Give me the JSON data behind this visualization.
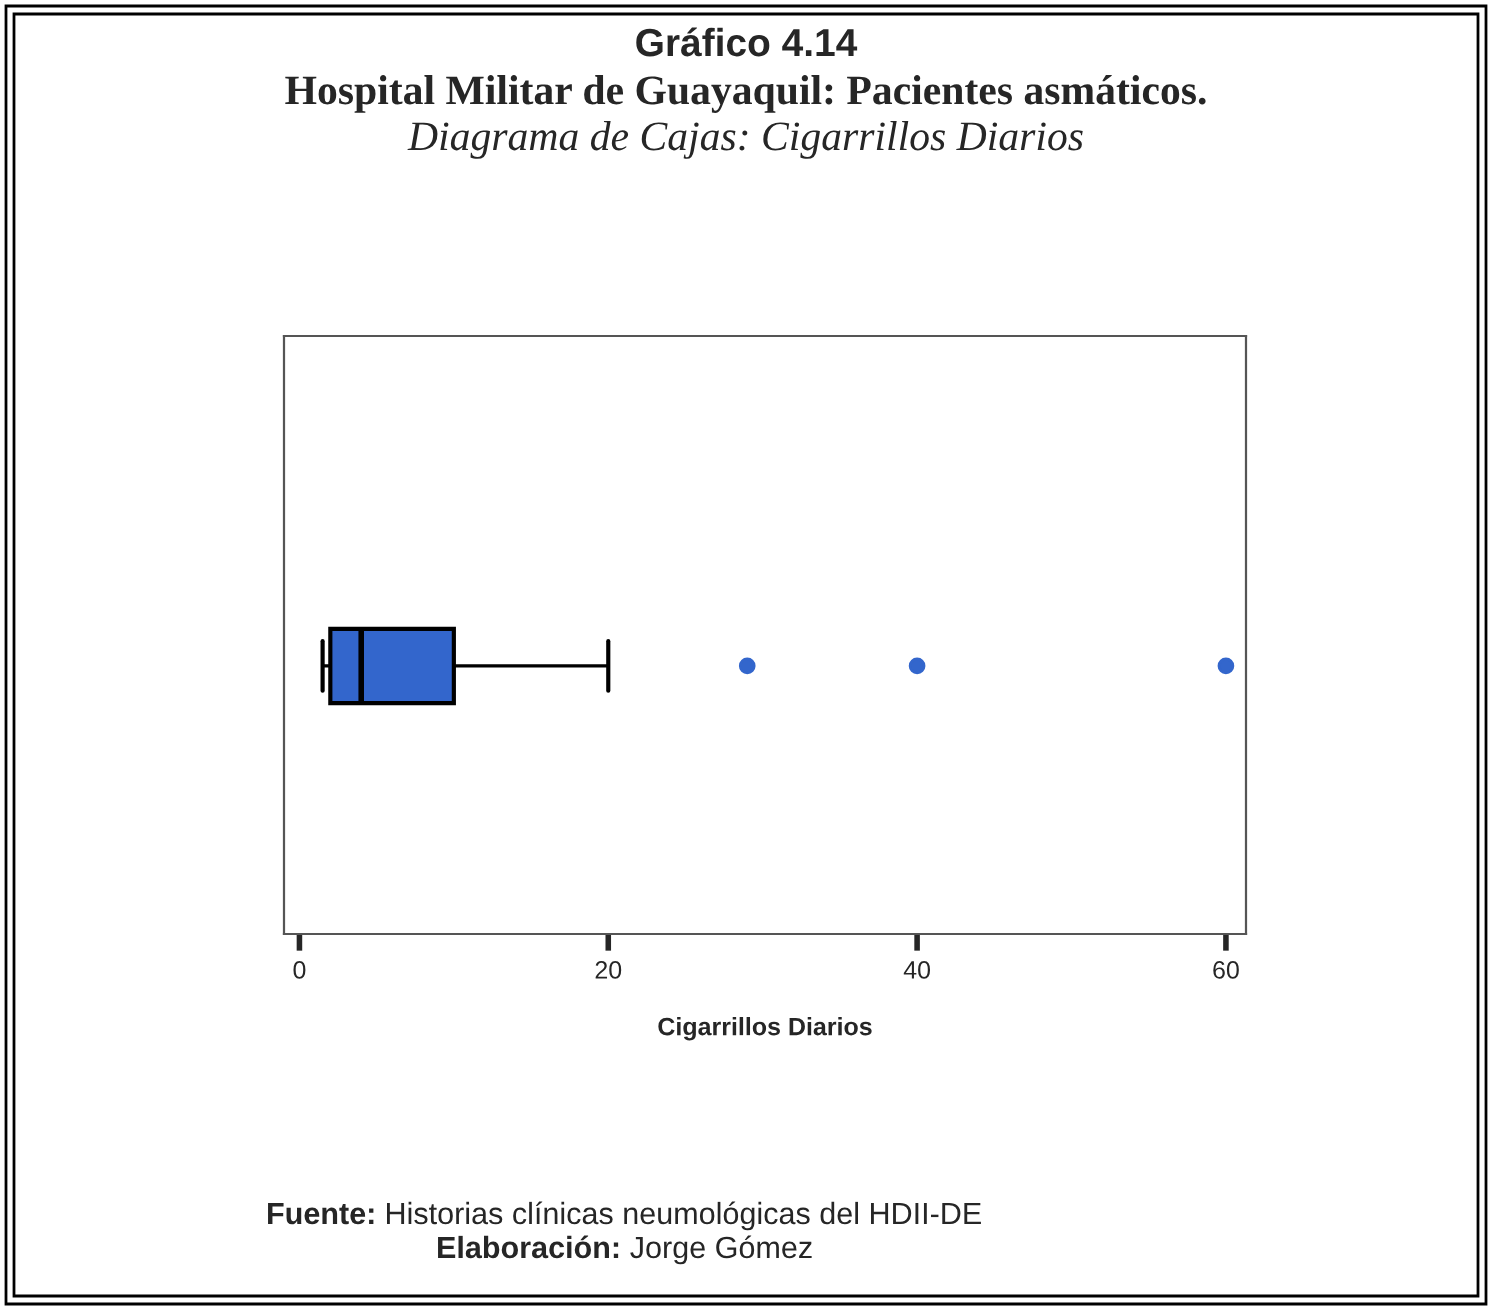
{
  "chart_data": {
    "type": "box",
    "title": "Gráfico 4.14",
    "subtitle": "Hospital Militar de Guayaquil: Pacientes asmáticos.\nDiagrama de Cajas: Cigarrillos Diarios",
    "xlabel": "Cigarrillos Diarios",
    "orientation": "horizontal",
    "categories": [
      null
    ],
    "boxes": [
      {
        "low": 1.5,
        "q1": 2,
        "median": 4,
        "q3": 10,
        "high": 20,
        "outliers": [
          29,
          40,
          60
        ]
      }
    ],
    "color": "#3366cc",
    "xlim": [
      -1,
      61.3
    ],
    "xticks": [
      0,
      20,
      40,
      60
    ],
    "grid": false,
    "annotations": [
      "Fuente: Historias clínicas neumológicas del HDII-DE",
      "Elaboración: Jorge Gómez"
    ]
  }
}
